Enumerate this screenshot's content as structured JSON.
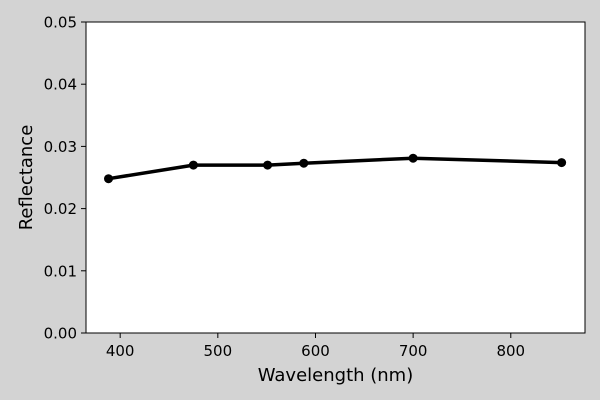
{
  "colors": {
    "figure_background": "#d3d3d3",
    "plot_background": "#ffffff",
    "series": "#000000"
  },
  "chart_data": {
    "type": "line",
    "title": "",
    "xlabel": "Wavelength (nm)",
    "ylabel": "Reflectance",
    "xlim": [
      365,
      876
    ],
    "ylim": [
      0.0,
      0.05
    ],
    "x_ticks": [
      400,
      500,
      600,
      700,
      800
    ],
    "x_tick_labels": [
      "400",
      "500",
      "600",
      "700",
      "800"
    ],
    "y_ticks": [
      0.0,
      0.01,
      0.02,
      0.03,
      0.04,
      0.05
    ],
    "y_tick_labels": [
      "0.00",
      "0.01",
      "0.02",
      "0.03",
      "0.04",
      "0.05"
    ],
    "grid": false,
    "legend": "none",
    "series": [
      {
        "marker": "circle",
        "x": [
          388,
          475,
          551,
          588,
          700,
          852
        ],
        "y": [
          0.0248,
          0.027,
          0.027,
          0.0273,
          0.0281,
          0.0274
        ]
      }
    ]
  }
}
